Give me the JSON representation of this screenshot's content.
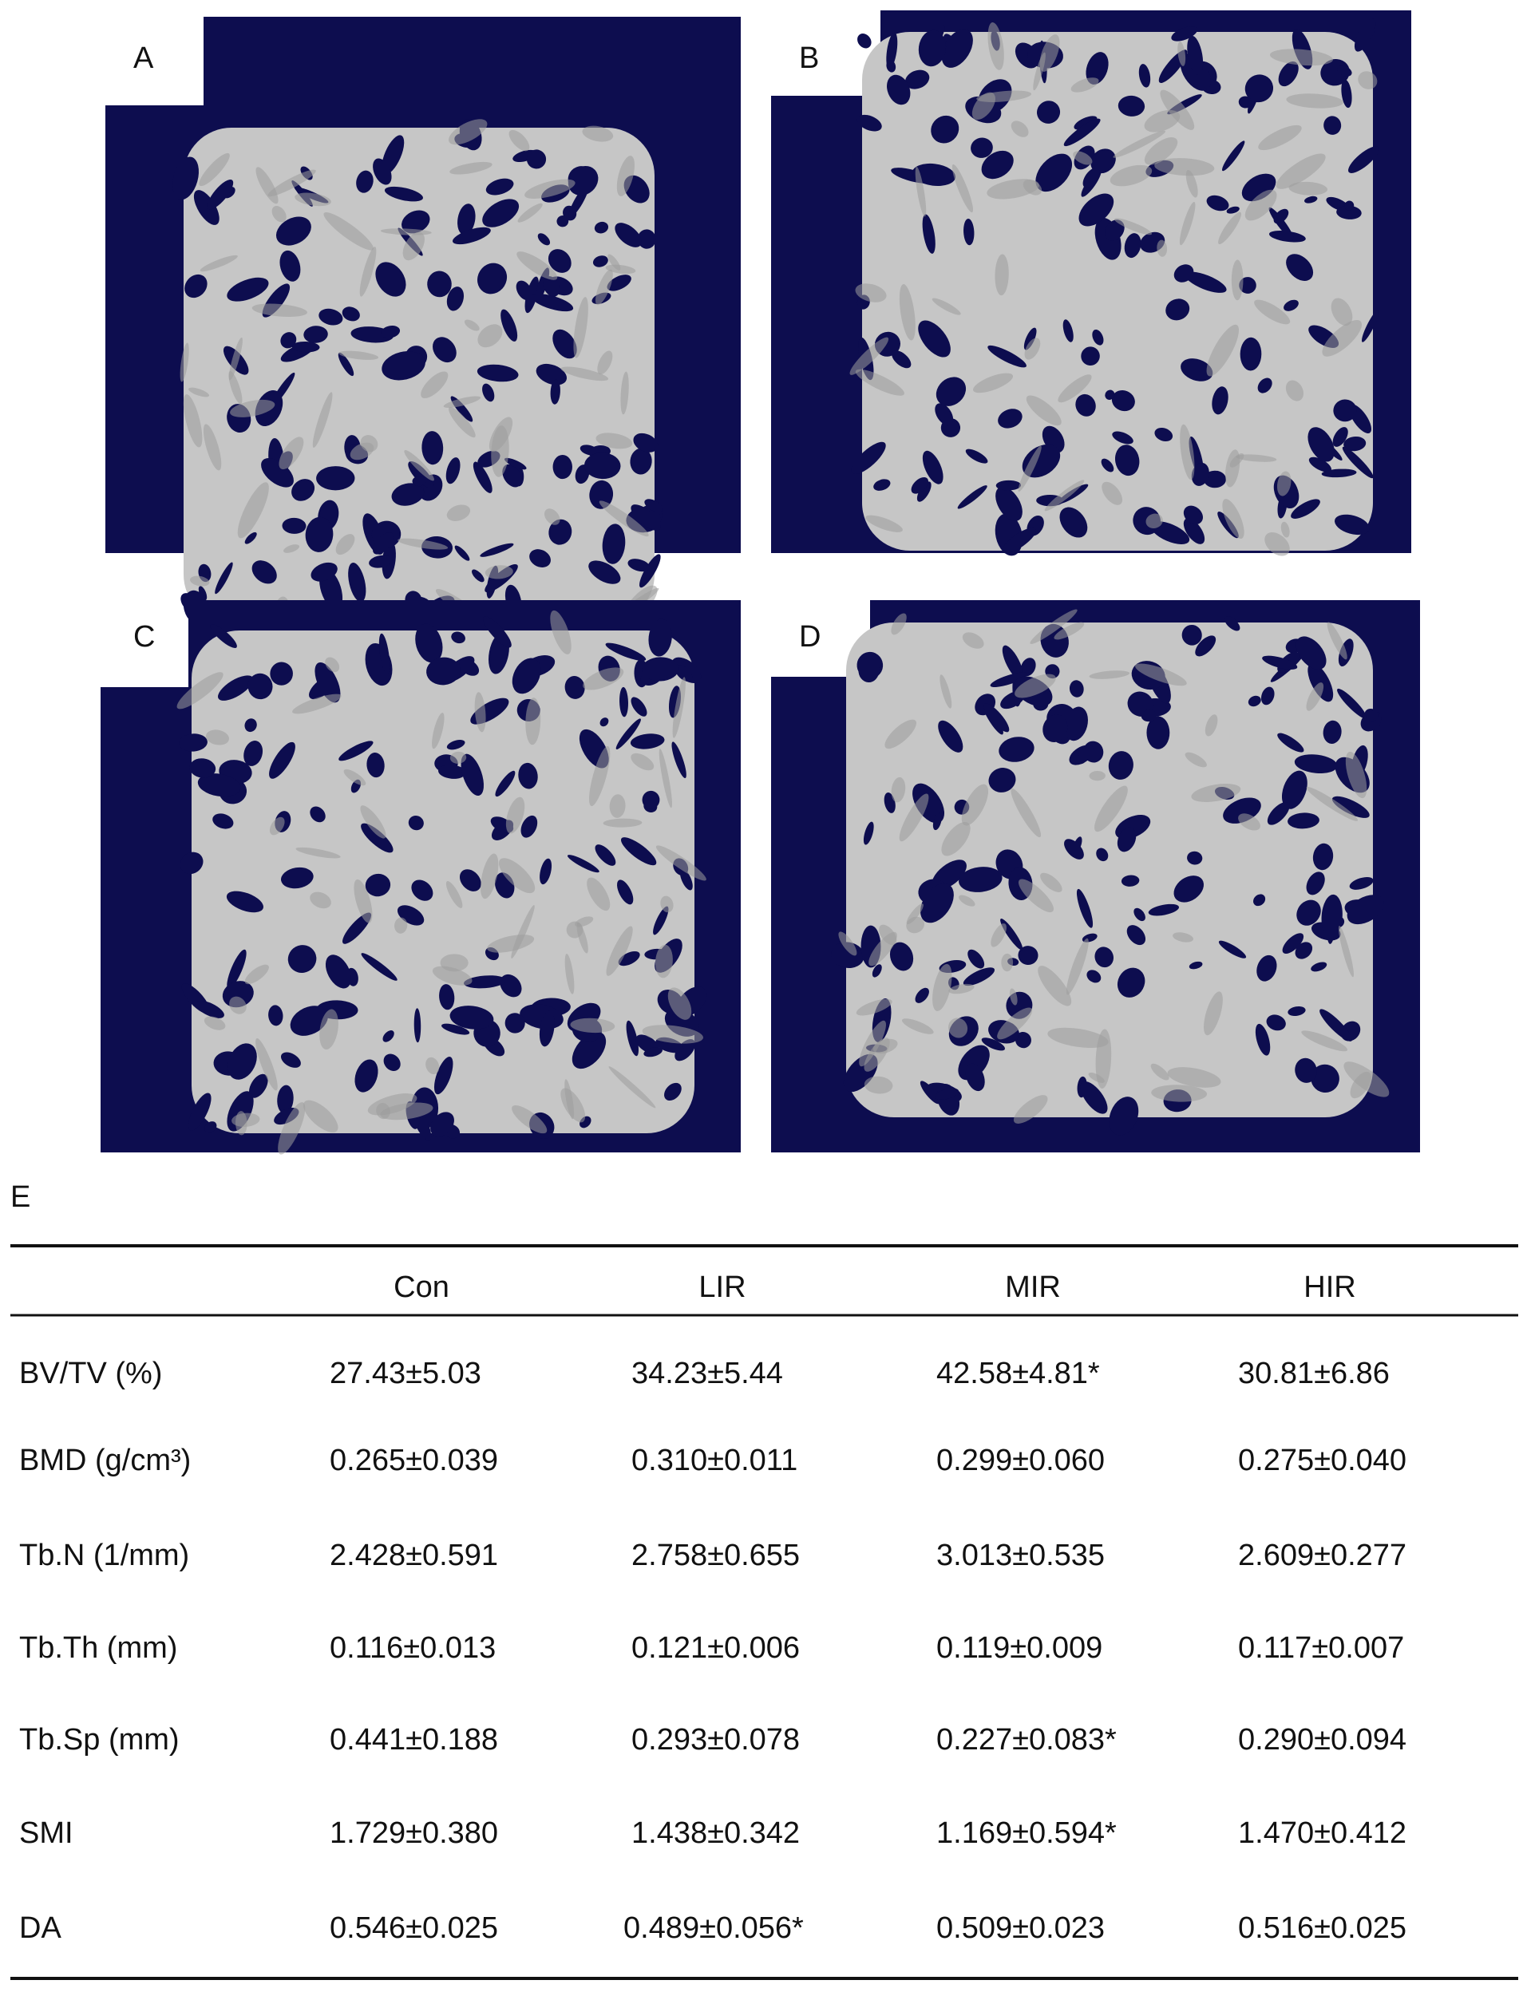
{
  "panels": [
    {
      "label": "A"
    },
    {
      "label": "B"
    },
    {
      "label": "C"
    },
    {
      "label": "D"
    }
  ],
  "table": {
    "label": "E",
    "header": [
      "Con",
      "LIR",
      "MIR",
      "HIR"
    ],
    "rows": [
      [
        "BV/TV (%)",
        "27.43±5.03",
        "34.23±5.44",
        "42.58±4.81*",
        "30.81±6.86"
      ],
      [
        "BMD (g/cm³)",
        "0.265±0.039",
        "0.310±0.011",
        "0.299±0.060",
        "0.275±0.040"
      ],
      [
        "Tb.N (1/mm)",
        "2.428±0.591",
        "2.758±0.655",
        "3.013±0.535",
        "2.609±0.277"
      ],
      [
        "Tb.Th (mm)",
        "0.116±0.013",
        "0.121±0.006",
        "0.119±0.009",
        "0.117±0.007"
      ],
      [
        "Tb.Sp (mm)",
        "0.441±0.188",
        "0.293±0.078",
        "0.227±0.083*",
        "0.290±0.094"
      ],
      [
        "SMI",
        "1.729±0.380",
        "1.438±0.342",
        "1.169±0.594*",
        "1.470±0.412"
      ],
      [
        "DA",
        "0.546±0.025",
        "0.489±0.056*",
        "0.509±0.023",
        "0.516±0.025"
      ]
    ]
  }
}
